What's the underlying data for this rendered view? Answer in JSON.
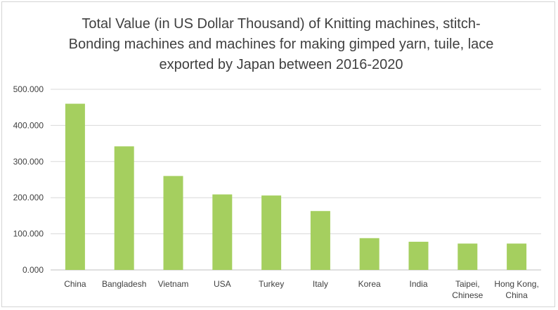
{
  "chart_data": {
    "type": "bar",
    "title_lines": [
      "Total Value (in US Dollar Thousand) of Knitting machines, stitch-",
      "Bonding  machines and machines for making gimped yarn, tuile, lace",
      "exported by Japan between 2016-2020"
    ],
    "categories": [
      [
        "China"
      ],
      [
        "Bangladesh"
      ],
      [
        "Vietnam"
      ],
      [
        "USA"
      ],
      [
        "Turkey"
      ],
      [
        "Italy"
      ],
      [
        "Korea"
      ],
      [
        "India"
      ],
      [
        "Taipei,",
        "Chinese"
      ],
      [
        "Hong Kong,",
        "China"
      ]
    ],
    "values": [
      460000,
      342000,
      260000,
      209000,
      206000,
      163000,
      88000,
      78000,
      73000,
      73000
    ],
    "ylim": [
      0,
      500000
    ],
    "yticks": [
      0,
      100000,
      200000,
      300000,
      400000,
      500000
    ],
    "ytick_labels": [
      "0.000",
      "100.000",
      "200.000",
      "300.000",
      "400.000",
      "500.000"
    ],
    "grid": true,
    "bar_color": "#a5cf5f",
    "grid_color": "#d9d9d9"
  }
}
